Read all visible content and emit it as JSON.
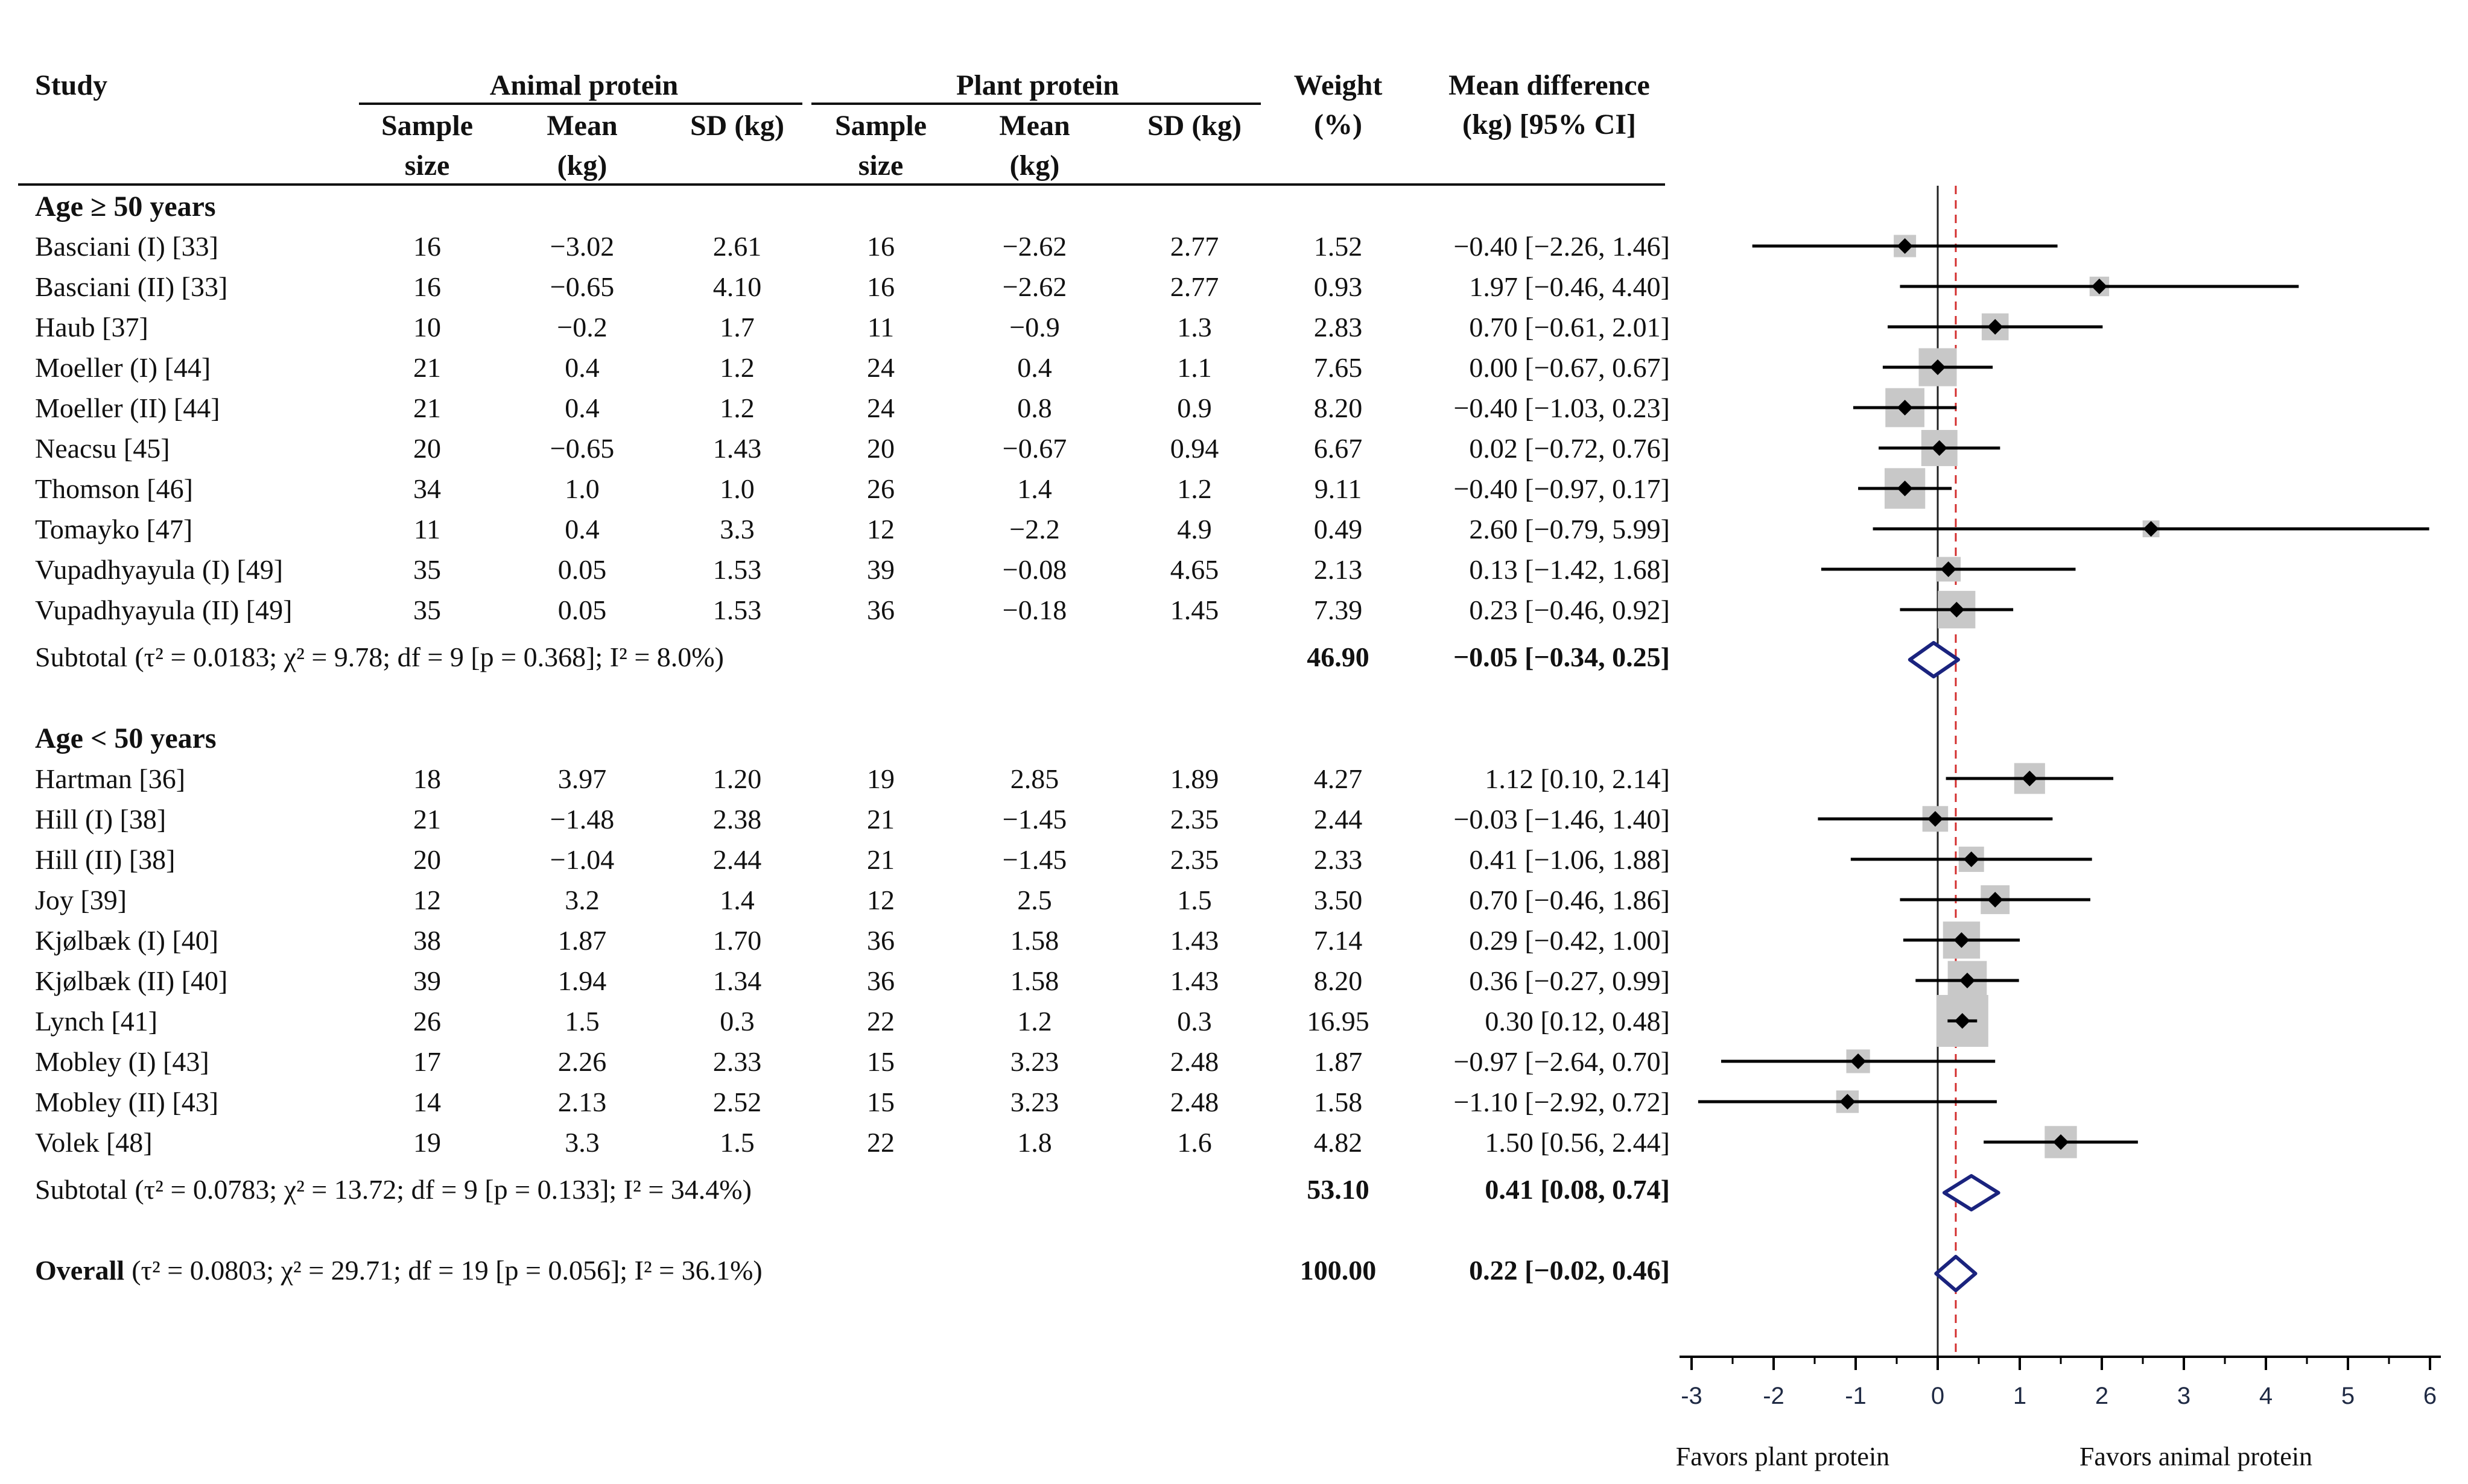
{
  "table": {
    "study_header": "Study",
    "animal_header": "Animal protein",
    "plant_header": "Plant protein",
    "weight_header": [
      "Weight",
      "(%)"
    ],
    "md_header": [
      "Mean difference",
      "(kg) [95% CI]"
    ],
    "sub_headers": {
      "sample": [
        "Sample",
        "size"
      ],
      "mean": [
        "Mean",
        "(kg)"
      ],
      "sd": "SD (kg)"
    }
  },
  "groups": [
    {
      "label": "Age ≥ 50 years",
      "subtotal_label": "Subtotal",
      "subtotal_stats": "(τ² = 0.0183; χ² = 9.78; df = 9 [p = 0.368]; I² = 8.0%)",
      "subtotal_weight": "46.90",
      "subtotal_ci": "−0.05 [−0.34, 0.25]"
    },
    {
      "label": "Age < 50 years",
      "subtotal_label": "Subtotal",
      "subtotal_stats": "(τ² = 0.0783; χ² = 13.72; df = 9 [p = 0.133]; I² = 34.4%)",
      "subtotal_weight": "53.10",
      "subtotal_ci": "0.41 [0.08, 0.74]"
    }
  ],
  "overall": {
    "label": "Overall",
    "stats": "(τ² = 0.0803; χ² = 29.71; df = 19 [p = 0.056]; I² = 36.1%)",
    "weight": "100.00",
    "ci": "0.22 [−0.02, 0.46]"
  },
  "axis_labels": {
    "left": "Favors plant protein",
    "right": "Favors animal protein"
  },
  "colors": {
    "text": "#111111",
    "diamond": "#1a237e",
    "overall_line": "#d32f2f",
    "weight_box": "#c8c8c8",
    "tick": "#1f2a44"
  },
  "chart_data": {
    "type": "forest",
    "xlim": [
      -3,
      6
    ],
    "ticks": [
      "-3",
      "-2",
      "-1",
      "0",
      "1",
      "2",
      "3",
      "4",
      "5",
      "6"
    ],
    "reference_line": 0,
    "overall_line": 0.22,
    "studies": [
      {
        "group": 0,
        "name": "Basciani (I) [33]",
        "a_n": "16",
        "a_mean": "−3.02",
        "a_sd": "2.61",
        "p_n": "16",
        "p_mean": "−2.62",
        "p_sd": "2.77",
        "weight": "1.52",
        "ci_text": "−0.40 [−2.26, 1.46]",
        "md": -0.4,
        "lo": -2.26,
        "hi": 1.46,
        "w": 1.52
      },
      {
        "group": 0,
        "name": "Basciani (II) [33]",
        "a_n": "16",
        "a_mean": "−0.65",
        "a_sd": "4.10",
        "p_n": "16",
        "p_mean": "−2.62",
        "p_sd": "2.77",
        "weight": "0.93",
        "ci_text": "1.97 [−0.46, 4.40]",
        "md": 1.97,
        "lo": -0.46,
        "hi": 4.4,
        "w": 0.93
      },
      {
        "group": 0,
        "name": "Haub [37]",
        "a_n": "10",
        "a_mean": "−0.2",
        "a_sd": "1.7",
        "p_n": "11",
        "p_mean": "−0.9",
        "p_sd": "1.3",
        "weight": "2.83",
        "ci_text": "0.70 [−0.61, 2.01]",
        "md": 0.7,
        "lo": -0.61,
        "hi": 2.01,
        "w": 2.83
      },
      {
        "group": 0,
        "name": "Moeller (I) [44]",
        "a_n": "21",
        "a_mean": "0.4",
        "a_sd": "1.2",
        "p_n": "24",
        "p_mean": "0.4",
        "p_sd": "1.1",
        "weight": "7.65",
        "ci_text": "0.00 [−0.67, 0.67]",
        "md": 0.0,
        "lo": -0.67,
        "hi": 0.67,
        "w": 7.65
      },
      {
        "group": 0,
        "name": "Moeller (II) [44]",
        "a_n": "21",
        "a_mean": "0.4",
        "a_sd": "1.2",
        "p_n": "24",
        "p_mean": "0.8",
        "p_sd": "0.9",
        "weight": "8.20",
        "ci_text": "−0.40 [−1.03, 0.23]",
        "md": -0.4,
        "lo": -1.03,
        "hi": 0.23,
        "w": 8.2
      },
      {
        "group": 0,
        "name": "Neacsu [45]",
        "a_n": "20",
        "a_mean": "−0.65",
        "a_sd": "1.43",
        "p_n": "20",
        "p_mean": "−0.67",
        "p_sd": "0.94",
        "weight": "6.67",
        "ci_text": "0.02 [−0.72, 0.76]",
        "md": 0.02,
        "lo": -0.72,
        "hi": 0.76,
        "w": 6.67
      },
      {
        "group": 0,
        "name": "Thomson [46]",
        "a_n": "34",
        "a_mean": "1.0",
        "a_sd": "1.0",
        "p_n": "26",
        "p_mean": "1.4",
        "p_sd": "1.2",
        "weight": "9.11",
        "ci_text": "−0.40 [−0.97, 0.17]",
        "md": -0.4,
        "lo": -0.97,
        "hi": 0.17,
        "w": 9.11
      },
      {
        "group": 0,
        "name": "Tomayko [47]",
        "a_n": "11",
        "a_mean": "0.4",
        "a_sd": "3.3",
        "p_n": "12",
        "p_mean": "−2.2",
        "p_sd": "4.9",
        "weight": "0.49",
        "ci_text": "2.60 [−0.79, 5.99]",
        "md": 2.6,
        "lo": -0.79,
        "hi": 5.99,
        "w": 0.49
      },
      {
        "group": 0,
        "name": "Vupadhyayula (I) [49]",
        "a_n": "35",
        "a_mean": "0.05",
        "a_sd": "1.53",
        "p_n": "39",
        "p_mean": "−0.08",
        "p_sd": "4.65",
        "weight": "2.13",
        "ci_text": "0.13 [−1.42, 1.68]",
        "md": 0.13,
        "lo": -1.42,
        "hi": 1.68,
        "w": 2.13
      },
      {
        "group": 0,
        "name": "Vupadhyayula (II) [49]",
        "a_n": "35",
        "a_mean": "0.05",
        "a_sd": "1.53",
        "p_n": "36",
        "p_mean": "−0.18",
        "p_sd": "1.45",
        "weight": "7.39",
        "ci_text": "0.23 [−0.46, 0.92]",
        "md": 0.23,
        "lo": -0.46,
        "hi": 0.92,
        "w": 7.39
      },
      {
        "group": 1,
        "name": "Hartman [36]",
        "a_n": "18",
        "a_mean": "3.97",
        "a_sd": "1.20",
        "p_n": "19",
        "p_mean": "2.85",
        "p_sd": "1.89",
        "weight": "4.27",
        "ci_text": "1.12 [0.10, 2.14]",
        "md": 1.12,
        "lo": 0.1,
        "hi": 2.14,
        "w": 4.27
      },
      {
        "group": 1,
        "name": "Hill (I) [38]",
        "a_n": "21",
        "a_mean": "−1.48",
        "a_sd": "2.38",
        "p_n": "21",
        "p_mean": "−1.45",
        "p_sd": "2.35",
        "weight": "2.44",
        "ci_text": "−0.03 [−1.46, 1.40]",
        "md": -0.03,
        "lo": -1.46,
        "hi": 1.4,
        "w": 2.44
      },
      {
        "group": 1,
        "name": "Hill (II) [38]",
        "a_n": "20",
        "a_mean": "−1.04",
        "a_sd": "2.44",
        "p_n": "21",
        "p_mean": "−1.45",
        "p_sd": "2.35",
        "weight": "2.33",
        "ci_text": "0.41 [−1.06, 1.88]",
        "md": 0.41,
        "lo": -1.06,
        "hi": 1.88,
        "w": 2.33
      },
      {
        "group": 1,
        "name": "Joy [39]",
        "a_n": "12",
        "a_mean": "3.2",
        "a_sd": "1.4",
        "p_n": "12",
        "p_mean": "2.5",
        "p_sd": "1.5",
        "weight": "3.50",
        "ci_text": "0.70 [−0.46, 1.86]",
        "md": 0.7,
        "lo": -0.46,
        "hi": 1.86,
        "w": 3.5
      },
      {
        "group": 1,
        "name": "Kjølbæk (I) [40]",
        "a_n": "38",
        "a_mean": "1.87",
        "a_sd": "1.70",
        "p_n": "36",
        "p_mean": "1.58",
        "p_sd": "1.43",
        "weight": "7.14",
        "ci_text": "0.29 [−0.42, 1.00]",
        "md": 0.29,
        "lo": -0.42,
        "hi": 1.0,
        "w": 7.14
      },
      {
        "group": 1,
        "name": "Kjølbæk (II) [40]",
        "a_n": "39",
        "a_mean": "1.94",
        "a_sd": "1.34",
        "p_n": "36",
        "p_mean": "1.58",
        "p_sd": "1.43",
        "weight": "8.20",
        "ci_text": "0.36 [−0.27, 0.99]",
        "md": 0.36,
        "lo": -0.27,
        "hi": 0.99,
        "w": 8.2
      },
      {
        "group": 1,
        "name": "Lynch [41]",
        "a_n": "26",
        "a_mean": "1.5",
        "a_sd": "0.3",
        "p_n": "22",
        "p_mean": "1.2",
        "p_sd": "0.3",
        "weight": "16.95",
        "ci_text": "0.30 [0.12, 0.48]",
        "md": 0.3,
        "lo": 0.12,
        "hi": 0.48,
        "w": 16.95
      },
      {
        "group": 1,
        "name": "Mobley (I) [43]",
        "a_n": "17",
        "a_mean": "2.26",
        "a_sd": "2.33",
        "p_n": "15",
        "p_mean": "3.23",
        "p_sd": "2.48",
        "weight": "1.87",
        "ci_text": "−0.97 [−2.64, 0.70]",
        "md": -0.97,
        "lo": -2.64,
        "hi": 0.7,
        "w": 1.87
      },
      {
        "group": 1,
        "name": "Mobley (II) [43]",
        "a_n": "14",
        "a_mean": "2.13",
        "a_sd": "2.52",
        "p_n": "15",
        "p_mean": "3.23",
        "p_sd": "2.48",
        "weight": "1.58",
        "ci_text": "−1.10 [−2.92, 0.72]",
        "md": -1.1,
        "lo": -2.92,
        "hi": 0.72,
        "w": 1.58
      },
      {
        "group": 1,
        "name": "Volek [48]",
        "a_n": "19",
        "a_mean": "3.3",
        "a_sd": "1.5",
        "p_n": "22",
        "p_mean": "1.8",
        "p_sd": "1.6",
        "weight": "4.82",
        "ci_text": "1.50 [0.56, 2.44]",
        "md": 1.5,
        "lo": 0.56,
        "hi": 2.44,
        "w": 4.82
      }
    ],
    "subtotals": [
      {
        "group": 0,
        "md": -0.05,
        "lo": -0.34,
        "hi": 0.25
      },
      {
        "group": 1,
        "md": 0.41,
        "lo": 0.08,
        "hi": 0.74
      }
    ],
    "overall": {
      "md": 0.22,
      "lo": -0.02,
      "hi": 0.46
    }
  }
}
